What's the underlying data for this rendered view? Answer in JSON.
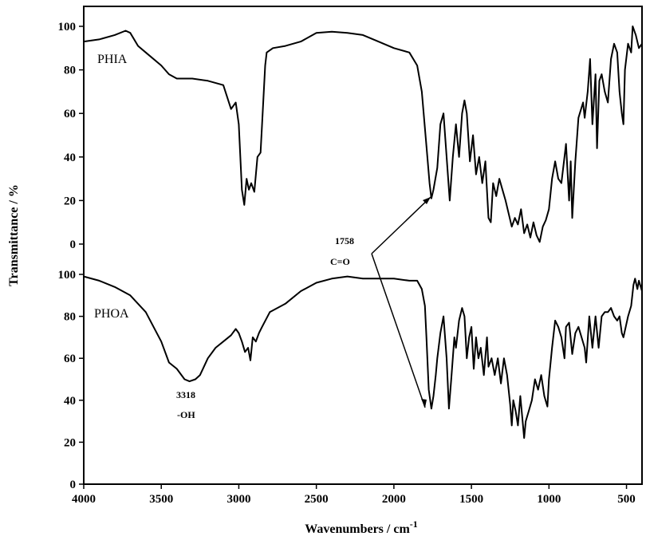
{
  "chart_data": {
    "type": "line",
    "xlabel": "Wavenumbers / cm",
    "xlabel_sup": "-1",
    "ylabel": "Transmittance / %",
    "xlim": [
      4000,
      400
    ],
    "x_ticks": [
      "4000",
      "3500",
      "3000",
      "2500",
      "2000",
      "1500",
      "1000",
      "500"
    ],
    "panels": [
      {
        "name": "PHIA",
        "ylim": [
          -5,
          108
        ],
        "y_ticks": [
          "0",
          "20",
          "40",
          "60",
          "80",
          "100"
        ],
        "points": [
          [
            4000,
            93
          ],
          [
            3900,
            94
          ],
          [
            3800,
            96
          ],
          [
            3730,
            98
          ],
          [
            3700,
            97
          ],
          [
            3650,
            91
          ],
          [
            3600,
            88
          ],
          [
            3500,
            82
          ],
          [
            3450,
            78
          ],
          [
            3400,
            76
          ],
          [
            3300,
            76
          ],
          [
            3200,
            75
          ],
          [
            3100,
            73
          ],
          [
            3050,
            62
          ],
          [
            3020,
            65
          ],
          [
            3000,
            55
          ],
          [
            2980,
            25
          ],
          [
            2965,
            18
          ],
          [
            2950,
            30
          ],
          [
            2935,
            25
          ],
          [
            2920,
            28
          ],
          [
            2900,
            24
          ],
          [
            2880,
            40
          ],
          [
            2860,
            42
          ],
          [
            2850,
            55
          ],
          [
            2830,
            82
          ],
          [
            2820,
            88
          ],
          [
            2780,
            90
          ],
          [
            2700,
            91
          ],
          [
            2600,
            93
          ],
          [
            2500,
            97
          ],
          [
            2400,
            97.5
          ],
          [
            2300,
            97
          ],
          [
            2200,
            96
          ],
          [
            2100,
            93
          ],
          [
            2000,
            90
          ],
          [
            1900,
            88
          ],
          [
            1850,
            82
          ],
          [
            1820,
            70
          ],
          [
            1790,
            45
          ],
          [
            1770,
            28
          ],
          [
            1758,
            21
          ],
          [
            1745,
            25
          ],
          [
            1720,
            35
          ],
          [
            1700,
            55
          ],
          [
            1680,
            60
          ],
          [
            1660,
            40
          ],
          [
            1640,
            20
          ],
          [
            1620,
            40
          ],
          [
            1600,
            55
          ],
          [
            1580,
            40
          ],
          [
            1560,
            60
          ],
          [
            1545,
            66
          ],
          [
            1530,
            60
          ],
          [
            1510,
            38
          ],
          [
            1490,
            50
          ],
          [
            1470,
            32
          ],
          [
            1450,
            40
          ],
          [
            1430,
            28
          ],
          [
            1410,
            38
          ],
          [
            1390,
            12
          ],
          [
            1375,
            10
          ],
          [
            1360,
            28
          ],
          [
            1340,
            22
          ],
          [
            1320,
            30
          ],
          [
            1300,
            25
          ],
          [
            1280,
            20
          ],
          [
            1260,
            14
          ],
          [
            1240,
            8
          ],
          [
            1220,
            12
          ],
          [
            1200,
            9
          ],
          [
            1180,
            16
          ],
          [
            1160,
            5
          ],
          [
            1140,
            9
          ],
          [
            1120,
            3
          ],
          [
            1100,
            10
          ],
          [
            1080,
            4
          ],
          [
            1060,
            1
          ],
          [
            1040,
            8
          ],
          [
            1020,
            11
          ],
          [
            1000,
            16
          ],
          [
            980,
            30
          ],
          [
            960,
            38
          ],
          [
            940,
            30
          ],
          [
            920,
            28
          ],
          [
            900,
            40
          ],
          [
            890,
            46
          ],
          [
            870,
            20
          ],
          [
            860,
            38
          ],
          [
            850,
            12
          ],
          [
            830,
            38
          ],
          [
            810,
            58
          ],
          [
            780,
            65
          ],
          [
            770,
            58
          ],
          [
            750,
            70
          ],
          [
            735,
            85
          ],
          [
            720,
            55
          ],
          [
            700,
            78
          ],
          [
            690,
            44
          ],
          [
            675,
            75
          ],
          [
            660,
            78
          ],
          [
            640,
            70
          ],
          [
            620,
            65
          ],
          [
            600,
            85
          ],
          [
            580,
            92
          ],
          [
            560,
            88
          ],
          [
            545,
            70
          ],
          [
            530,
            60
          ],
          [
            520,
            55
          ],
          [
            510,
            80
          ],
          [
            490,
            92
          ],
          [
            470,
            88
          ],
          [
            460,
            100
          ],
          [
            440,
            96
          ],
          [
            420,
            90
          ],
          [
            400,
            92
          ]
        ]
      },
      {
        "name": "PHOA",
        "ylim": [
          0,
          100
        ],
        "y_ticks": [
          "0",
          "20",
          "40",
          "60",
          "80",
          "100"
        ],
        "points": [
          [
            4000,
            99
          ],
          [
            3900,
            97
          ],
          [
            3800,
            94
          ],
          [
            3700,
            90
          ],
          [
            3600,
            82
          ],
          [
            3500,
            68
          ],
          [
            3450,
            58
          ],
          [
            3400,
            55
          ],
          [
            3350,
            50
          ],
          [
            3318,
            49
          ],
          [
            3280,
            50
          ],
          [
            3250,
            52
          ],
          [
            3200,
            60
          ],
          [
            3150,
            65
          ],
          [
            3100,
            68
          ],
          [
            3050,
            71
          ],
          [
            3020,
            74
          ],
          [
            3000,
            72
          ],
          [
            2980,
            68
          ],
          [
            2960,
            63
          ],
          [
            2940,
            65
          ],
          [
            2925,
            59
          ],
          [
            2910,
            70
          ],
          [
            2890,
            68
          ],
          [
            2870,
            72
          ],
          [
            2850,
            75
          ],
          [
            2800,
            82
          ],
          [
            2700,
            86
          ],
          [
            2600,
            92
          ],
          [
            2500,
            96
          ],
          [
            2400,
            98
          ],
          [
            2300,
            99
          ],
          [
            2200,
            98
          ],
          [
            2100,
            98
          ],
          [
            2000,
            98
          ],
          [
            1900,
            97
          ],
          [
            1850,
            97
          ],
          [
            1820,
            93
          ],
          [
            1800,
            85
          ],
          [
            1790,
            70
          ],
          [
            1775,
            45
          ],
          [
            1758,
            36
          ],
          [
            1745,
            42
          ],
          [
            1730,
            52
          ],
          [
            1720,
            60
          ],
          [
            1700,
            72
          ],
          [
            1680,
            80
          ],
          [
            1660,
            60
          ],
          [
            1645,
            36
          ],
          [
            1630,
            50
          ],
          [
            1610,
            70
          ],
          [
            1600,
            65
          ],
          [
            1580,
            78
          ],
          [
            1560,
            84
          ],
          [
            1545,
            80
          ],
          [
            1530,
            60
          ],
          [
            1515,
            70
          ],
          [
            1500,
            75
          ],
          [
            1485,
            55
          ],
          [
            1470,
            70
          ],
          [
            1455,
            60
          ],
          [
            1440,
            65
          ],
          [
            1420,
            52
          ],
          [
            1400,
            70
          ],
          [
            1390,
            56
          ],
          [
            1370,
            60
          ],
          [
            1350,
            52
          ],
          [
            1330,
            60
          ],
          [
            1310,
            48
          ],
          [
            1290,
            60
          ],
          [
            1270,
            52
          ],
          [
            1250,
            38
          ],
          [
            1240,
            28
          ],
          [
            1230,
            40
          ],
          [
            1215,
            35
          ],
          [
            1200,
            28
          ],
          [
            1185,
            42
          ],
          [
            1170,
            30
          ],
          [
            1160,
            22
          ],
          [
            1150,
            30
          ],
          [
            1130,
            35
          ],
          [
            1110,
            40
          ],
          [
            1090,
            50
          ],
          [
            1070,
            45
          ],
          [
            1050,
            52
          ],
          [
            1030,
            42
          ],
          [
            1010,
            37
          ],
          [
            1000,
            50
          ],
          [
            980,
            65
          ],
          [
            960,
            78
          ],
          [
            940,
            75
          ],
          [
            920,
            70
          ],
          [
            900,
            60
          ],
          [
            890,
            75
          ],
          [
            870,
            77
          ],
          [
            850,
            62
          ],
          [
            830,
            72
          ],
          [
            810,
            75
          ],
          [
            790,
            70
          ],
          [
            770,
            65
          ],
          [
            760,
            58
          ],
          [
            740,
            80
          ],
          [
            720,
            65
          ],
          [
            700,
            80
          ],
          [
            680,
            65
          ],
          [
            660,
            80
          ],
          [
            640,
            82
          ],
          [
            620,
            82
          ],
          [
            600,
            84
          ],
          [
            580,
            80
          ],
          [
            560,
            78
          ],
          [
            545,
            80
          ],
          [
            530,
            72
          ],
          [
            520,
            70
          ],
          [
            505,
            75
          ],
          [
            490,
            80
          ],
          [
            470,
            85
          ],
          [
            455,
            95
          ],
          [
            445,
            98
          ],
          [
            430,
            93
          ],
          [
            420,
            97
          ],
          [
            400,
            92
          ]
        ]
      }
    ],
    "annotations": [
      {
        "label": "1758",
        "sub": "C=O"
      },
      {
        "label": "3318",
        "sub": "-OH"
      }
    ]
  }
}
